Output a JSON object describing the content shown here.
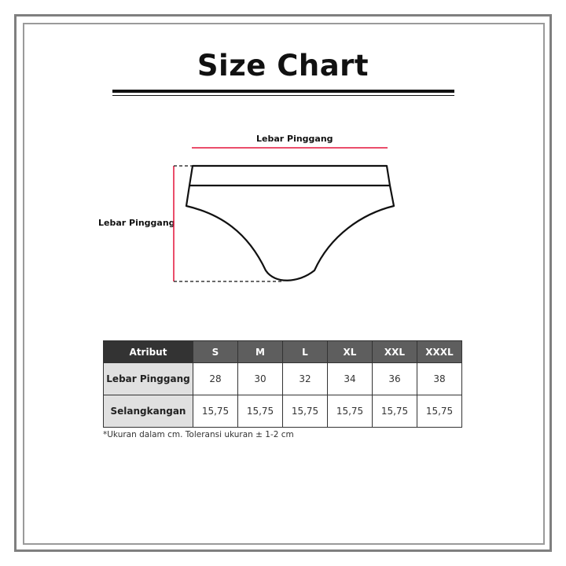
{
  "title": "Size Chart",
  "diagram": {
    "top_label": "Lebar Pinggang",
    "side_label": "Lebar Pinggang",
    "measure_color": "#e3123a"
  },
  "table": {
    "headers": [
      "Atribut",
      "S",
      "M",
      "L",
      "XL",
      "XXL",
      "XXXL"
    ],
    "rows": [
      {
        "label": "Lebar Pinggang",
        "values": [
          "28",
          "30",
          "32",
          "34",
          "36",
          "38"
        ]
      },
      {
        "label": "Selangkangan",
        "values": [
          "15,75",
          "15,75",
          "15,75",
          "15,75",
          "15,75",
          "15,75"
        ]
      }
    ]
  },
  "note": "*Ukuran dalam cm. Toleransi ukuran ± 1-2 cm"
}
